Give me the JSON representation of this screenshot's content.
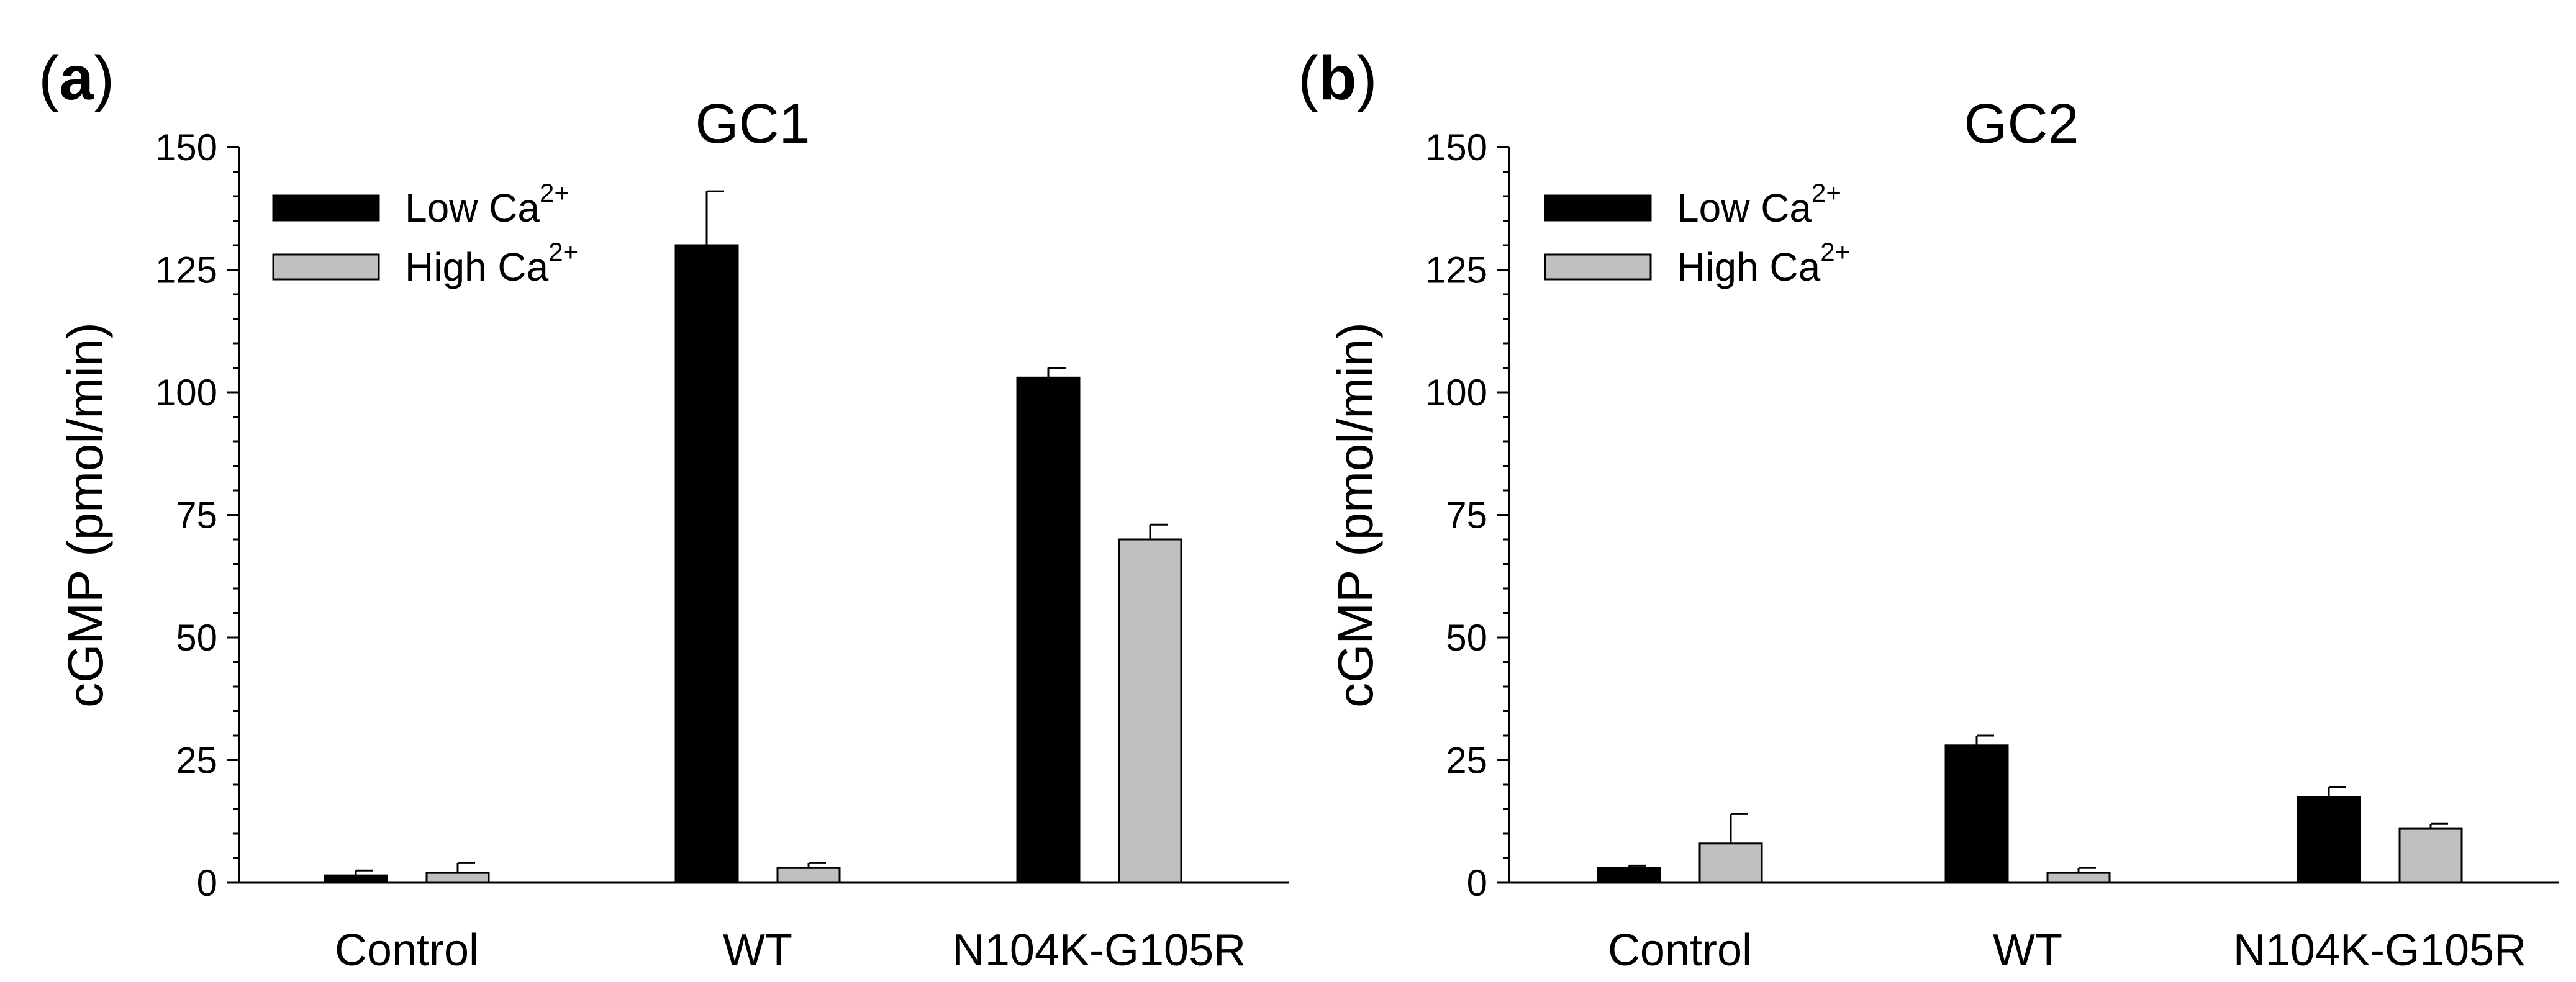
{
  "panels": [
    {
      "panel_label": "a",
      "chart_data": {
        "type": "bar",
        "title": "GC1",
        "xlabel": "",
        "ylabel": "cGMP (pmol/min)",
        "ylim": [
          0,
          150
        ],
        "yticks": [
          0,
          25,
          50,
          75,
          100,
          125,
          150
        ],
        "categories": [
          "Control",
          "WT",
          "N104K-G105R"
        ],
        "series": [
          {
            "name": "Low Ca2+",
            "legend_main": "Low Ca",
            "legend_sup": "2+",
            "color": "#000000",
            "values": [
              1.5,
              130,
              103
            ],
            "errors": [
              1,
              11,
              2
            ]
          },
          {
            "name": "High Ca2+",
            "legend_main": "High Ca",
            "legend_sup": "2+",
            "color": "#c0c0c0",
            "values": [
              2,
              3,
              70
            ],
            "errors": [
              2,
              1,
              3
            ]
          }
        ],
        "legend_position": "top-left"
      }
    },
    {
      "panel_label": "b",
      "chart_data": {
        "type": "bar",
        "title": "GC2",
        "xlabel": "",
        "ylabel": "cGMP (pmol/min)",
        "ylim": [
          0,
          150
        ],
        "yticks": [
          0,
          25,
          50,
          75,
          100,
          125,
          150
        ],
        "categories": [
          "Control",
          "WT",
          "N104K-G105R"
        ],
        "series": [
          {
            "name": "Low Ca2+",
            "legend_main": "Low Ca",
            "legend_sup": "2+",
            "color": "#000000",
            "values": [
              3,
              28,
              17.5
            ],
            "errors": [
              0.5,
              2,
              2
            ]
          },
          {
            "name": "High Ca2+",
            "legend_main": "High Ca",
            "legend_sup": "2+",
            "color": "#c0c0c0",
            "values": [
              8,
              2,
              11
            ],
            "errors": [
              6,
              1,
              1
            ]
          }
        ],
        "legend_position": "top-left"
      }
    }
  ]
}
